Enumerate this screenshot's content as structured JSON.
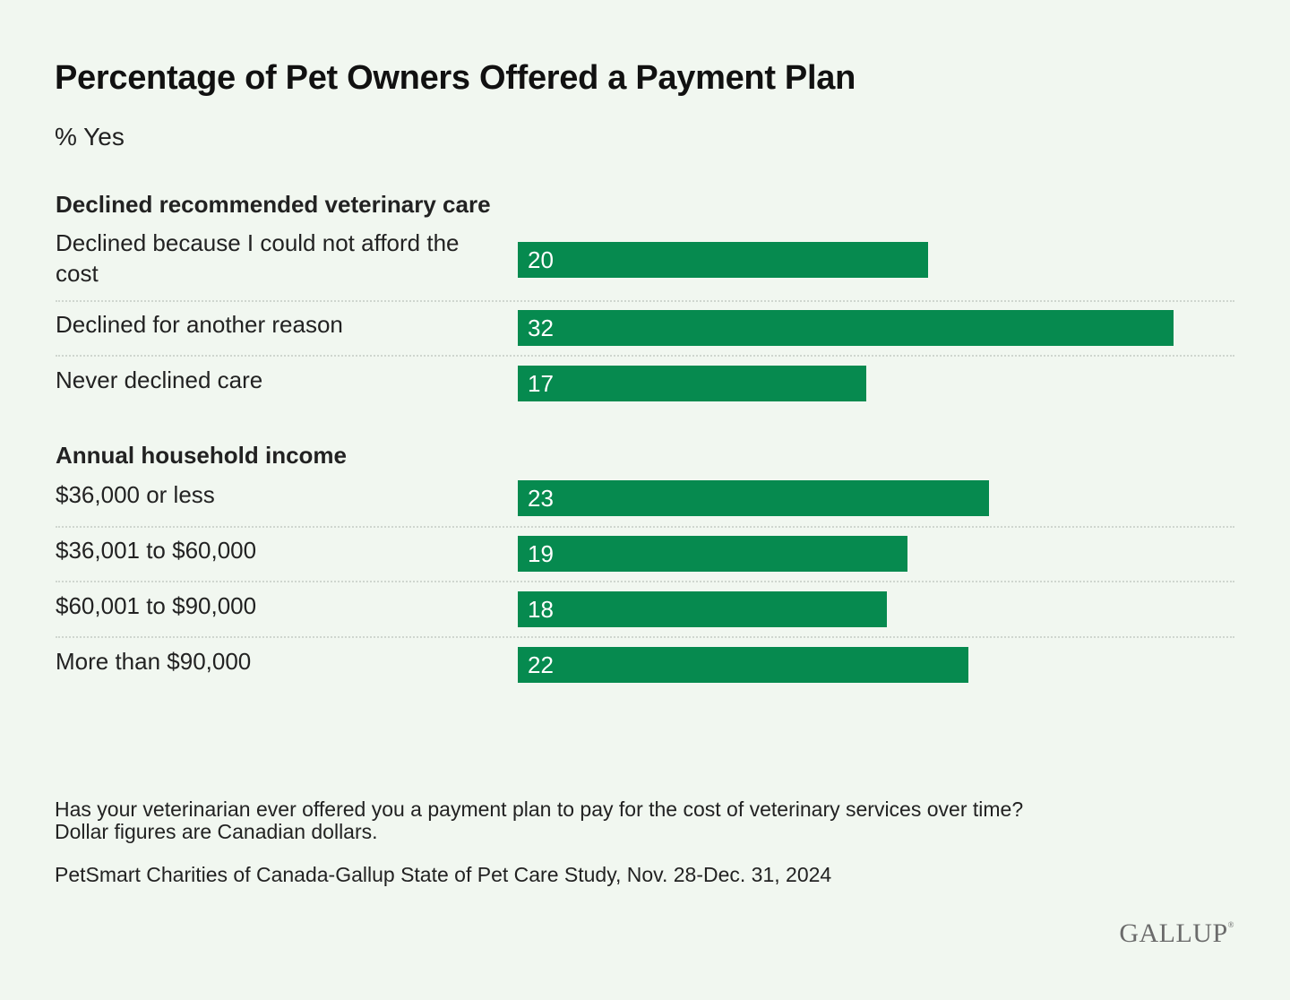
{
  "header": {
    "title": "Percentage of Pet Owners Offered a Payment Plan",
    "subtitle": "% Yes"
  },
  "chart_data": {
    "type": "bar",
    "orientation": "horizontal",
    "title": "Percentage of Pet Owners Offered a Payment Plan",
    "subtitle": "% Yes",
    "xlim": [
      0,
      35
    ],
    "groups": [
      {
        "name": "Declined recommended veterinary care",
        "categories": [
          "Declined because I could not afford the cost",
          "Declined for another reason",
          "Never declined care"
        ],
        "values": [
          20,
          32,
          17
        ]
      },
      {
        "name": "Annual household income",
        "categories": [
          "$36,000 or less",
          "$36,001 to $60,000",
          "$60,001 to $90,000",
          "More than $90,000"
        ],
        "values": [
          23,
          19,
          18,
          22
        ]
      }
    ],
    "bar_color": "#068a4f"
  },
  "footer": {
    "question": "Has your veterinarian ever offered you a payment plan to pay for the cost of veterinary services over time?",
    "note": "Dollar figures are Canadian dollars.",
    "source": "PetSmart Charities of Canada-Gallup State of Pet Care Study, Nov. 28-Dec. 31, 2024",
    "logo": "GALLUP"
  }
}
